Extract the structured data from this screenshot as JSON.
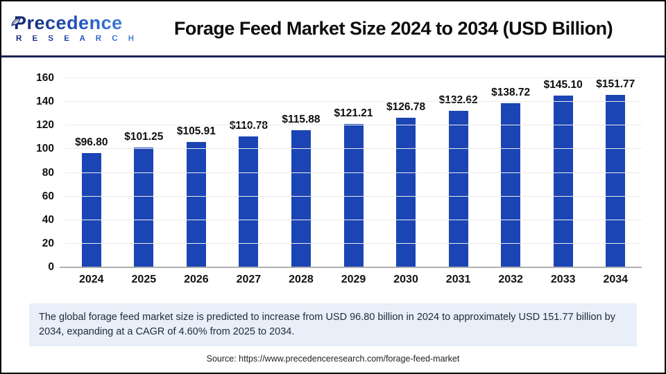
{
  "header": {
    "logo_line1": "Precedence",
    "logo_line2": "R E S E A R C H",
    "title": "Forage Feed Market Size 2024 to 2034 (USD Billion)"
  },
  "chart_data": {
    "type": "bar",
    "title": "Forage Feed Market Size 2024 to 2034 (USD Billion)",
    "categories": [
      "2024",
      "2025",
      "2026",
      "2027",
      "2028",
      "2029",
      "2030",
      "2031",
      "2032",
      "2033",
      "2034"
    ],
    "values": [
      96.8,
      101.25,
      105.91,
      110.78,
      115.88,
      121.21,
      126.78,
      132.62,
      138.72,
      145.1,
      151.77
    ],
    "value_labels": [
      "$96.80",
      "$101.25",
      "$105.91",
      "$110.78",
      "$115.88",
      "$121.21",
      "$126.78",
      "$132.62",
      "$138.72",
      "$145.10",
      "$151.77"
    ],
    "xlabel": "",
    "ylabel": "",
    "ylim": [
      0,
      160
    ],
    "yticks": [
      0,
      20,
      40,
      60,
      80,
      100,
      120,
      140,
      160
    ],
    "grid": true,
    "legend": "none",
    "bar_color": "#1b45b4"
  },
  "summary": {
    "text": "The global forage feed market size is predicted to increase from USD 96.80 billion in 2024 to approximately USD 151.77 billion by 2034, expanding at a CAGR of 4.60% from 2025 to 2034."
  },
  "source": {
    "text": "Source: https://www.precedenceresearch.com/forage-feed-market"
  },
  "colors": {
    "bar": "#1b45b4",
    "header_divider": "#1b2556",
    "summary_bg": "#e9eff9",
    "gridline": "#ebebeb",
    "axis_line": "#b0b0b0"
  }
}
